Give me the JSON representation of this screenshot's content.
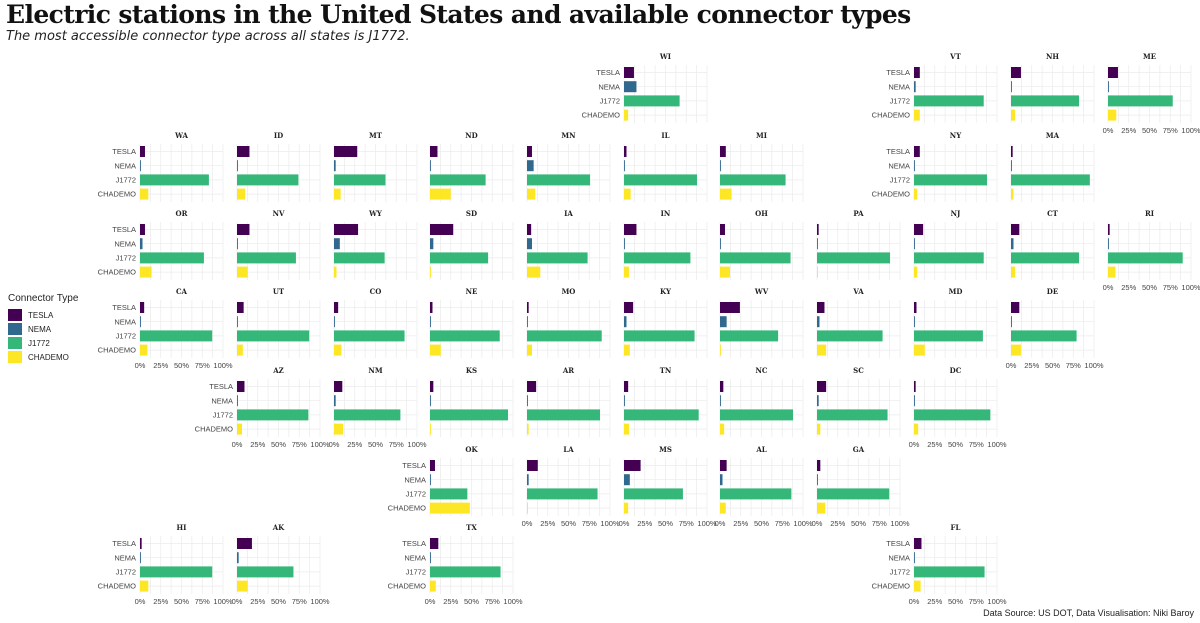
{
  "title": "Electric stations in the United States and available connector types",
  "subtitle": "The most accessible connector type across all states is J1772.",
  "source": "Data Source: US DOT, Data Visualisation: Niki Baroy",
  "legend": {
    "title": "Connector Type",
    "items": [
      {
        "label": "TESLA",
        "color": "#440154"
      },
      {
        "label": "NEMA",
        "color": "#31688e"
      },
      {
        "label": "J1772",
        "color": "#35b779"
      },
      {
        "label": "CHADEMO",
        "color": "#fde725"
      }
    ]
  },
  "chart_data": {
    "type": "bar",
    "orientation": "horizontal",
    "layout": "geofacet US state grid",
    "categories": [
      "TESLA",
      "NEMA",
      "J1772",
      "CHADEMO"
    ],
    "x_ticks": [
      "0%",
      "25%",
      "50%",
      "75%",
      "100%"
    ],
    "xlim": [
      0,
      100
    ],
    "grid": true,
    "legend_position": "left",
    "states": [
      {
        "name": "WI",
        "values": [
          12,
          15,
          67,
          5
        ]
      },
      {
        "name": "VT",
        "values": [
          7,
          2,
          84,
          7
        ]
      },
      {
        "name": "NH",
        "values": [
          12,
          1,
          82,
          5
        ]
      },
      {
        "name": "ME",
        "values": [
          12,
          0,
          78,
          10
        ]
      },
      {
        "name": "WA",
        "values": [
          6,
          1,
          83,
          10
        ]
      },
      {
        "name": "ID",
        "values": [
          15,
          1,
          74,
          10
        ]
      },
      {
        "name": "MT",
        "values": [
          28,
          2,
          62,
          8
        ]
      },
      {
        "name": "ND",
        "values": [
          9,
          0,
          67,
          25
        ]
      },
      {
        "name": "MN",
        "values": [
          6,
          8,
          76,
          10
        ]
      },
      {
        "name": "IL",
        "values": [
          3,
          1,
          88,
          8
        ]
      },
      {
        "name": "MI",
        "values": [
          7,
          1,
          79,
          14
        ]
      },
      {
        "name": "NY",
        "values": [
          7,
          1,
          88,
          4
        ]
      },
      {
        "name": "MA",
        "values": [
          2,
          0,
          95,
          3
        ]
      },
      {
        "name": "OR",
        "values": [
          6,
          3,
          77,
          14
        ]
      },
      {
        "name": "NV",
        "values": [
          15,
          1,
          71,
          13
        ]
      },
      {
        "name": "WY",
        "values": [
          29,
          7,
          61,
          3
        ]
      },
      {
        "name": "SD",
        "values": [
          28,
          4,
          70,
          0
        ]
      },
      {
        "name": "IA",
        "values": [
          5,
          6,
          73,
          16
        ]
      },
      {
        "name": "IN",
        "values": [
          15,
          1,
          80,
          6
        ]
      },
      {
        "name": "OH",
        "values": [
          6,
          1,
          85,
          12
        ]
      },
      {
        "name": "PA",
        "values": [
          2,
          1,
          88,
          1
        ]
      },
      {
        "name": "NJ",
        "values": [
          11,
          1,
          84,
          4
        ]
      },
      {
        "name": "CT",
        "values": [
          10,
          3,
          82,
          5
        ]
      },
      {
        "name": "RI",
        "values": [
          2,
          1,
          90,
          9
        ]
      },
      {
        "name": "CA",
        "values": [
          5,
          1,
          87,
          9
        ]
      },
      {
        "name": "UT",
        "values": [
          8,
          1,
          87,
          7
        ]
      },
      {
        "name": "CO",
        "values": [
          5,
          1,
          85,
          9
        ]
      },
      {
        "name": "NE",
        "values": [
          3,
          0,
          84,
          13
        ]
      },
      {
        "name": "MO",
        "values": [
          2,
          1,
          90,
          6
        ]
      },
      {
        "name": "KY",
        "values": [
          11,
          3,
          85,
          7
        ]
      },
      {
        "name": "WV",
        "values": [
          24,
          8,
          70,
          1
        ]
      },
      {
        "name": "VA",
        "values": [
          9,
          3,
          79,
          11
        ]
      },
      {
        "name": "MD",
        "values": [
          3,
          1,
          83,
          13
        ]
      },
      {
        "name": "DE",
        "values": [
          10,
          1,
          79,
          12
        ]
      },
      {
        "name": "AZ",
        "values": [
          9,
          1,
          86,
          6
        ]
      },
      {
        "name": "NM",
        "values": [
          10,
          2,
          80,
          11
        ]
      },
      {
        "name": "KS",
        "values": [
          4,
          1,
          94,
          1
        ]
      },
      {
        "name": "AR",
        "values": [
          11,
          1,
          88,
          2
        ]
      },
      {
        "name": "TN",
        "values": [
          5,
          1,
          90,
          6
        ]
      },
      {
        "name": "NC",
        "values": [
          4,
          1,
          88,
          5
        ]
      },
      {
        "name": "SC",
        "values": [
          11,
          2,
          85,
          4
        ]
      },
      {
        "name": "DC",
        "values": [
          2,
          1,
          92,
          5
        ]
      },
      {
        "name": "OK",
        "values": [
          6,
          1,
          45,
          48
        ]
      },
      {
        "name": "LA",
        "values": [
          13,
          2,
          85,
          1
        ]
      },
      {
        "name": "MS",
        "values": [
          20,
          7,
          71,
          5
        ]
      },
      {
        "name": "AL",
        "values": [
          8,
          3,
          86,
          7
        ]
      },
      {
        "name": "GA",
        "values": [
          4,
          1,
          87,
          10
        ]
      },
      {
        "name": "HI",
        "values": [
          2,
          1,
          87,
          10
        ]
      },
      {
        "name": "AK",
        "values": [
          18,
          2,
          68,
          13
        ]
      },
      {
        "name": "TX",
        "values": [
          10,
          1,
          85,
          7
        ]
      },
      {
        "name": "FL",
        "values": [
          9,
          1,
          85,
          8
        ]
      }
    ]
  }
}
